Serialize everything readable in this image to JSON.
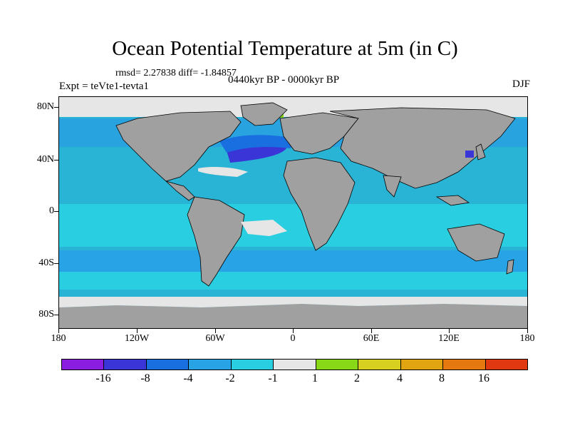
{
  "title": "Ocean Potential Temperature at 5m (in C)",
  "stats": "rmsd= 2.27838 diff= -1.84857",
  "expt": "Expt = teVte1-tevta1",
  "period": "0440kyr BP - 0000kyr BP",
  "season": "DJF",
  "y_axis_labels": [
    "80N",
    "40N",
    "0",
    "40S",
    "80S"
  ],
  "x_axis_labels": [
    "180",
    "120W",
    "60W",
    "0",
    "60E",
    "120E",
    "180"
  ],
  "colorbar": {
    "colors": [
      "#8a1de0",
      "#3a35d6",
      "#1a6fe0",
      "#27a3e6",
      "#29cfe0",
      "#e6e6e6",
      "#88d818",
      "#d8d020",
      "#e0a510",
      "#e67810",
      "#e03810"
    ],
    "labels": [
      "-16",
      "-8",
      "-4",
      "-2",
      "-1",
      "1",
      "2",
      "4",
      "8",
      "16"
    ]
  },
  "colors": {
    "land": "#a0a0a0",
    "ocean_base": "#29b3d4",
    "ice": "#e6e6e6"
  }
}
